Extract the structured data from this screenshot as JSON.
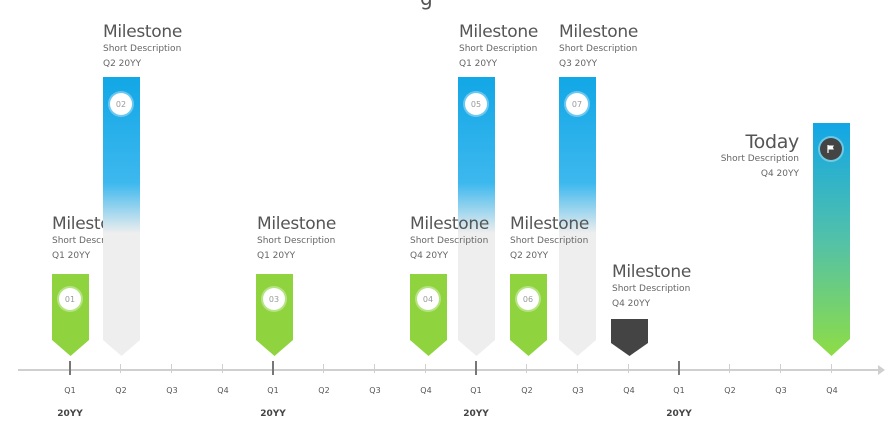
{
  "title_fragment": "g",
  "milestones": [
    {
      "id": "01",
      "title": "Milestone",
      "desc": "Short Description",
      "date": "Q1 20YY",
      "style": "green"
    },
    {
      "id": "02",
      "title": "Milestone",
      "desc": "Short Description",
      "date": "Q2 20YY",
      "style": "blue"
    },
    {
      "id": "03",
      "title": "Milestone",
      "desc": "Short Description",
      "date": "Q1 20YY",
      "style": "green"
    },
    {
      "id": "04",
      "title": "Milestone",
      "desc": "Short Description",
      "date": "Q4 20YY",
      "style": "green"
    },
    {
      "id": "05",
      "title": "Milestone",
      "desc": "Short Description",
      "date": "Q1 20YY",
      "style": "blue"
    },
    {
      "id": "06",
      "title": "Milestone",
      "desc": "Short Description",
      "date": "Q2 20YY",
      "style": "green"
    },
    {
      "id": "07",
      "title": "Milestone",
      "desc": "Short Description",
      "date": "Q3 20YY",
      "style": "blue"
    },
    {
      "id": "",
      "title": "Milestone",
      "desc": "Short Description",
      "date": "Q4 20YY",
      "style": "dark"
    },
    {
      "id": "",
      "title": "Today",
      "desc": "Short Description",
      "date": "Q4 20YY",
      "style": "today",
      "icon": "flag-icon"
    }
  ],
  "axis": {
    "quarters": [
      "Q1",
      "Q2",
      "Q3",
      "Q4",
      "Q1",
      "Q2",
      "Q3",
      "Q4",
      "Q1",
      "Q2",
      "Q3",
      "Q4",
      "Q1",
      "Q2",
      "Q3",
      "Q4"
    ],
    "years": [
      "20YY",
      "20YY",
      "20YY",
      "20YY"
    ]
  },
  "colors": {
    "green": "#8fd43f",
    "blue": "#15a8e6",
    "dark": "#444444",
    "axis": "#cfcfcf"
  }
}
